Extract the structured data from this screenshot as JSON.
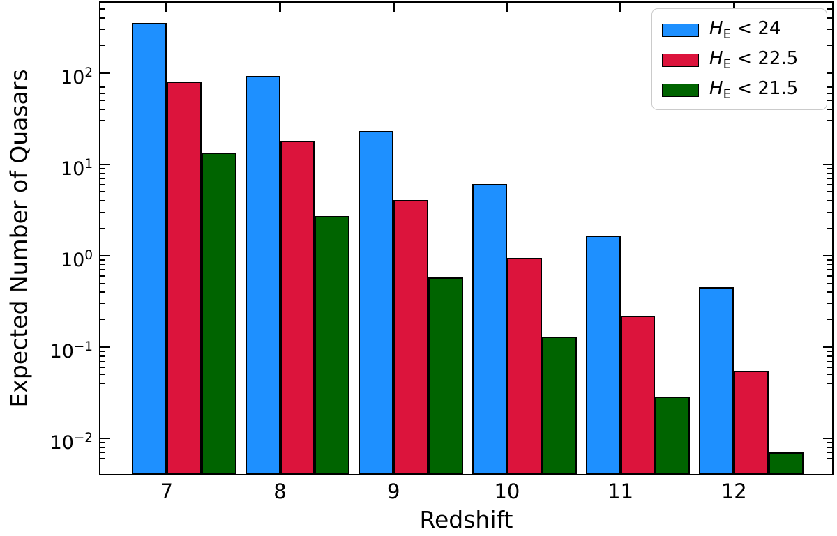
{
  "chart_data": {
    "type": "bar",
    "title": "",
    "xlabel": "Redshift",
    "ylabel": "Expected Number of Quasars",
    "yscale": "log",
    "categories": [
      7,
      8,
      9,
      10,
      11,
      12
    ],
    "series": [
      {
        "key": "he24",
        "name": "H_E < 24",
        "color": "#1E90FF",
        "values": [
          350,
          92,
          23.3,
          6.1,
          1.65,
          0.45
        ]
      },
      {
        "key": "he225",
        "name": "H_E < 22.5",
        "color": "#DC143C",
        "values": [
          81,
          18,
          4.1,
          0.95,
          0.22,
          0.055
        ]
      },
      {
        "key": "he215",
        "name": "H_E < 21.5",
        "color": "#006400",
        "values": [
          13.4,
          2.7,
          0.58,
          0.13,
          0.029,
          0.007
        ]
      }
    ],
    "bar_width_units": 0.3067,
    "bar_offsets_units": [
      -0.3067,
      0,
      0.3067
    ],
    "xlim": [
      6.417,
      12.865
    ],
    "ylim_log10": [
      -2.388,
      2.768
    ],
    "ytick_exponents": [
      2,
      1,
      0,
      -1,
      -2
    ],
    "grid": "off",
    "legend": {
      "position": "upper right",
      "items": [
        {
          "h": "H",
          "sub": "E",
          "cond": " < 24"
        },
        {
          "h": "H",
          "sub": "E",
          "cond": " < 22.5"
        },
        {
          "h": "H",
          "sub": "E",
          "cond": " < 21.5"
        }
      ]
    },
    "colors": {
      "edge": "#000000",
      "legend_border": "#cbcbcb",
      "background": "#ffffff"
    }
  }
}
